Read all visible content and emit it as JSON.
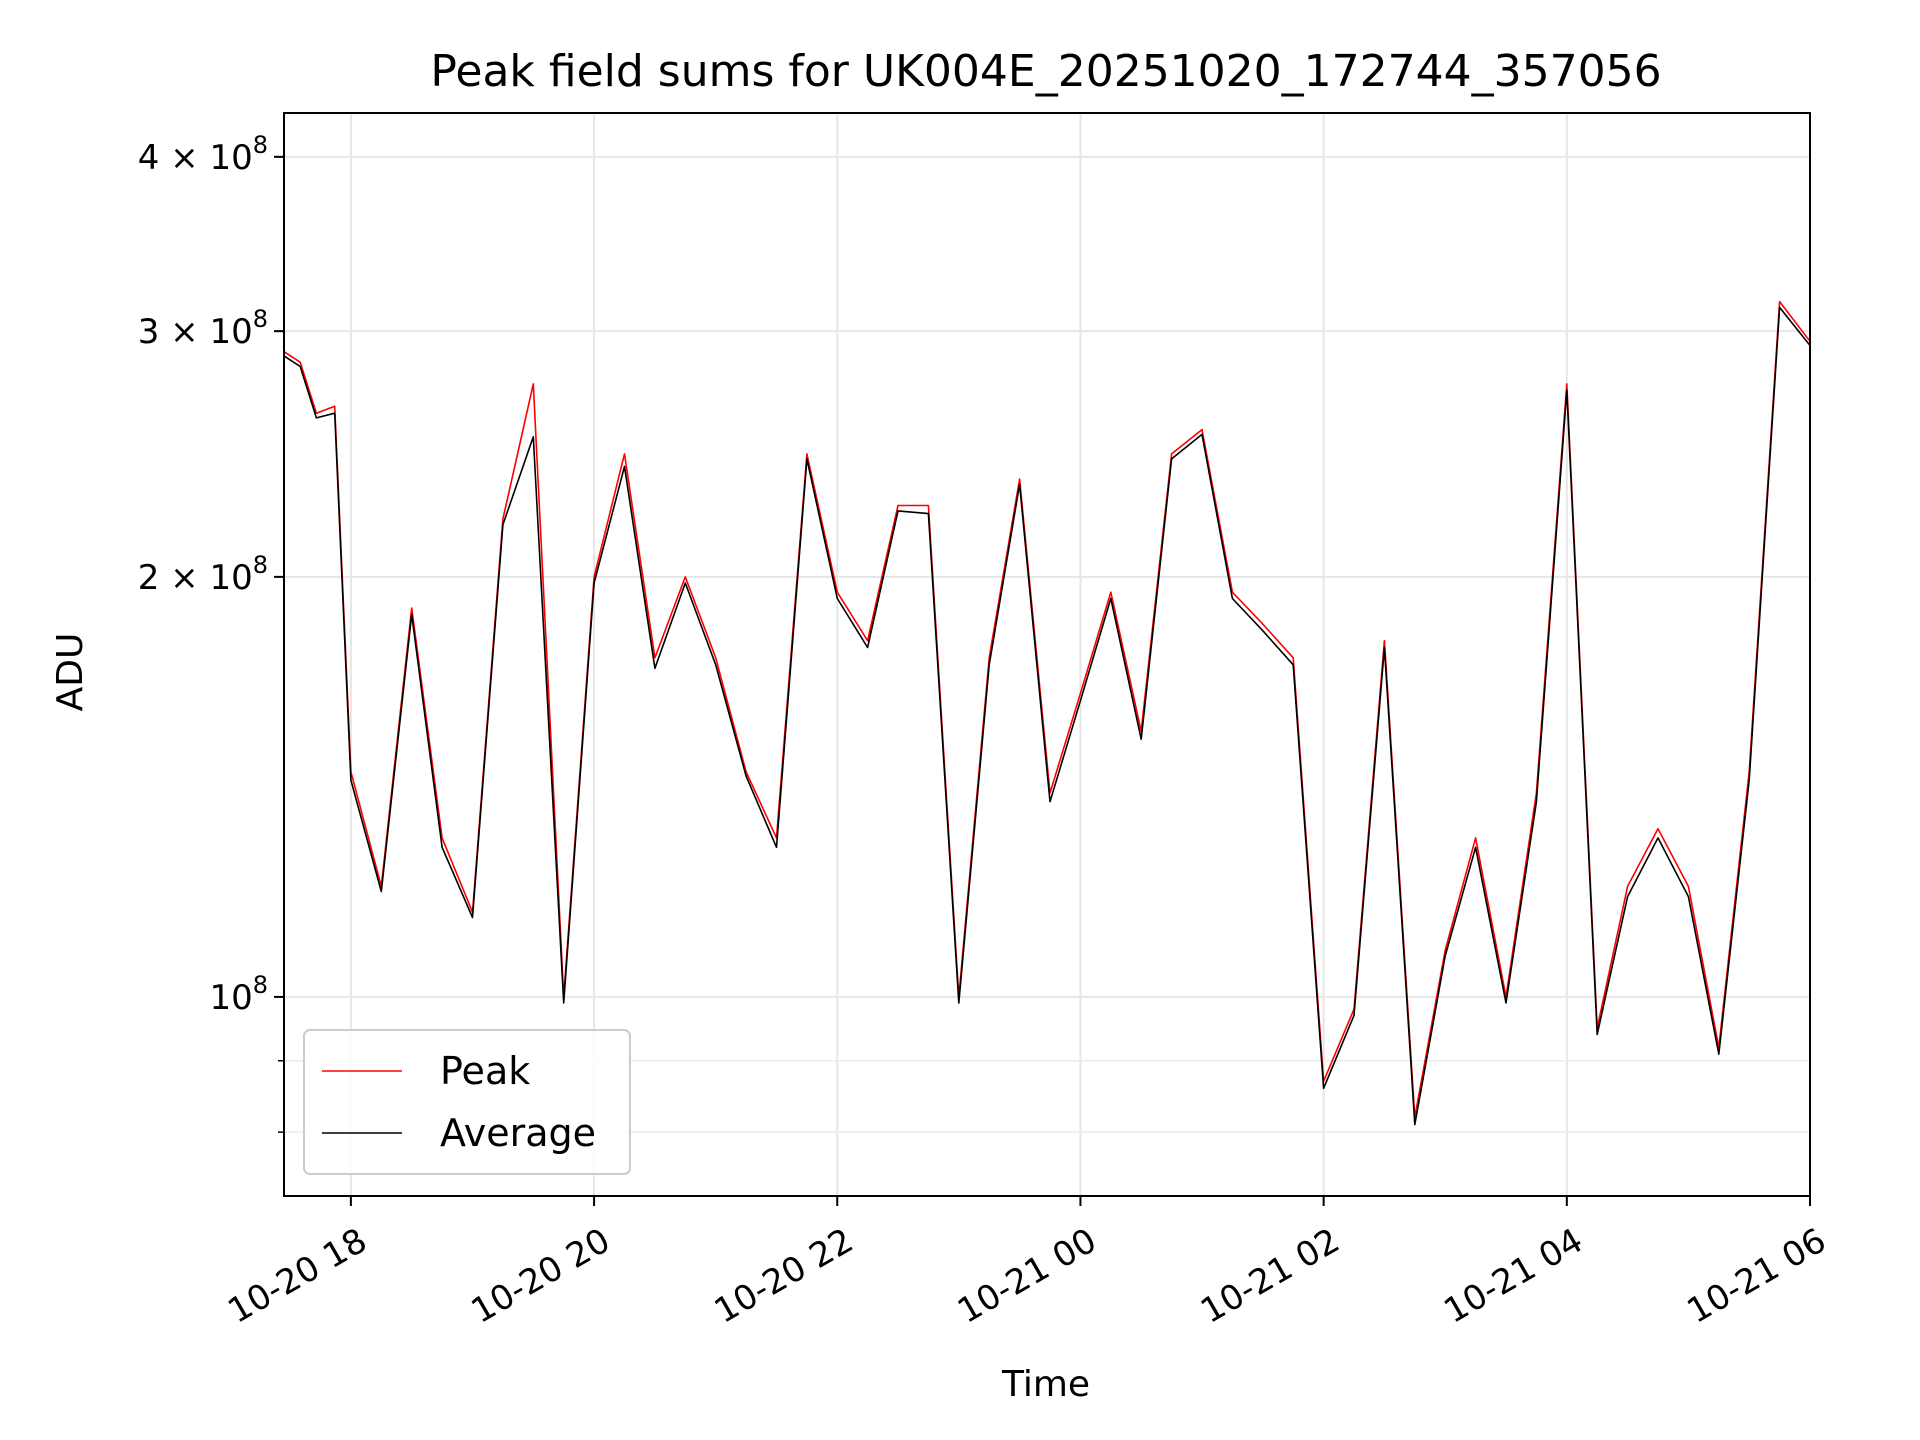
{
  "chart_data": {
    "type": "line",
    "title": "Peak field sums for UK004E_20251020_172744_357056",
    "xlabel": "Time",
    "ylabel": "ADU",
    "y_scale": "log",
    "ylim": [
      72000000,
      430000000
    ],
    "xlim": [
      "2025-10-20 17:27",
      "2025-10-21 06:00"
    ],
    "grid": true,
    "legend_position": "lower-left",
    "x_ticks": [
      {
        "t": "2025-10-20 18:00",
        "label": "10-20 18"
      },
      {
        "t": "2025-10-20 20:00",
        "label": "10-20 20"
      },
      {
        "t": "2025-10-20 22:00",
        "label": "10-20 22"
      },
      {
        "t": "2025-10-21 00:00",
        "label": "10-21 00"
      },
      {
        "t": "2025-10-21 02:00",
        "label": "10-21 02"
      },
      {
        "t": "2025-10-21 04:00",
        "label": "10-21 04"
      },
      {
        "t": "2025-10-21 06:00",
        "label": "10-21 06"
      }
    ],
    "y_major_ticks": [
      {
        "v": 100000000,
        "base": "10",
        "exp": "8"
      },
      {
        "v": 200000000,
        "base": "2 × 10",
        "exp": "8"
      },
      {
        "v": 300000000,
        "base": "3 × 10",
        "exp": "8"
      },
      {
        "v": 400000000,
        "base": "4 × 10",
        "exp": "8"
      }
    ],
    "y_minor_ticks": [
      80000000,
      90000000
    ],
    "x": [
      "2025-10-20 17:27",
      "2025-10-20 17:35",
      "2025-10-20 17:43",
      "2025-10-20 17:52",
      "2025-10-20 18:00",
      "2025-10-20 18:15",
      "2025-10-20 18:30",
      "2025-10-20 18:45",
      "2025-10-20 19:00",
      "2025-10-20 19:15",
      "2025-10-20 19:30",
      "2025-10-20 19:45",
      "2025-10-20 20:00",
      "2025-10-20 20:15",
      "2025-10-20 20:30",
      "2025-10-20 20:45",
      "2025-10-20 21:00",
      "2025-10-20 21:15",
      "2025-10-20 21:30",
      "2025-10-20 21:45",
      "2025-10-20 22:00",
      "2025-10-20 22:15",
      "2025-10-20 22:30",
      "2025-10-20 22:45",
      "2025-10-20 23:00",
      "2025-10-20 23:15",
      "2025-10-20 23:30",
      "2025-10-20 23:45",
      "2025-10-21 00:00",
      "2025-10-21 00:15",
      "2025-10-21 00:30",
      "2025-10-21 00:45",
      "2025-10-21 01:00",
      "2025-10-21 01:15",
      "2025-10-21 01:30",
      "2025-10-21 01:45",
      "2025-10-21 02:00",
      "2025-10-21 02:15",
      "2025-10-21 02:30",
      "2025-10-21 02:45",
      "2025-10-21 03:00",
      "2025-10-21 03:15",
      "2025-10-21 03:30",
      "2025-10-21 03:45",
      "2025-10-21 04:00",
      "2025-10-21 04:15",
      "2025-10-21 04:30",
      "2025-10-21 04:45",
      "2025-10-21 05:00",
      "2025-10-21 05:15",
      "2025-10-21 05:30",
      "2025-10-21 05:45",
      "2025-10-21 06:00"
    ],
    "series": [
      {
        "name": "Peak",
        "color": "#ff0000",
        "values": [
          290000000,
          285000000,
          262000000,
          265000000,
          145000000,
          120000000,
          190000000,
          130000000,
          115000000,
          220000000,
          275000000,
          100000000,
          200000000,
          245000000,
          175000000,
          200000000,
          175000000,
          145000000,
          130000000,
          245000000,
          195000000,
          180000000,
          225000000,
          225000000,
          100000000,
          175000000,
          235000000,
          140000000,
          165000000,
          195000000,
          155000000,
          245000000,
          255000000,
          195000000,
          185000000,
          175000000,
          87000000,
          98000000,
          180000000,
          82000000,
          108000000,
          130000000,
          100000000,
          140000000,
          275000000,
          95000000,
          120000000,
          132000000,
          120000000,
          92000000,
          145000000,
          315000000,
          295000000
        ]
      },
      {
        "name": "Average",
        "color": "#000000",
        "values": [
          288000000,
          283000000,
          260000000,
          262000000,
          143000000,
          119000000,
          188000000,
          128000000,
          114000000,
          218000000,
          252000000,
          99000000,
          198000000,
          240000000,
          172000000,
          198000000,
          173000000,
          144000000,
          128000000,
          243000000,
          193000000,
          178000000,
          223000000,
          222000000,
          99000000,
          173000000,
          233000000,
          138000000,
          163000000,
          193000000,
          153000000,
          243000000,
          253000000,
          193000000,
          183000000,
          173000000,
          86000000,
          97000000,
          178000000,
          81000000,
          107000000,
          128000000,
          99000000,
          138000000,
          272000000,
          94000000,
          118000000,
          130000000,
          118000000,
          91000000,
          143000000,
          312000000,
          293000000
        ]
      }
    ]
  }
}
